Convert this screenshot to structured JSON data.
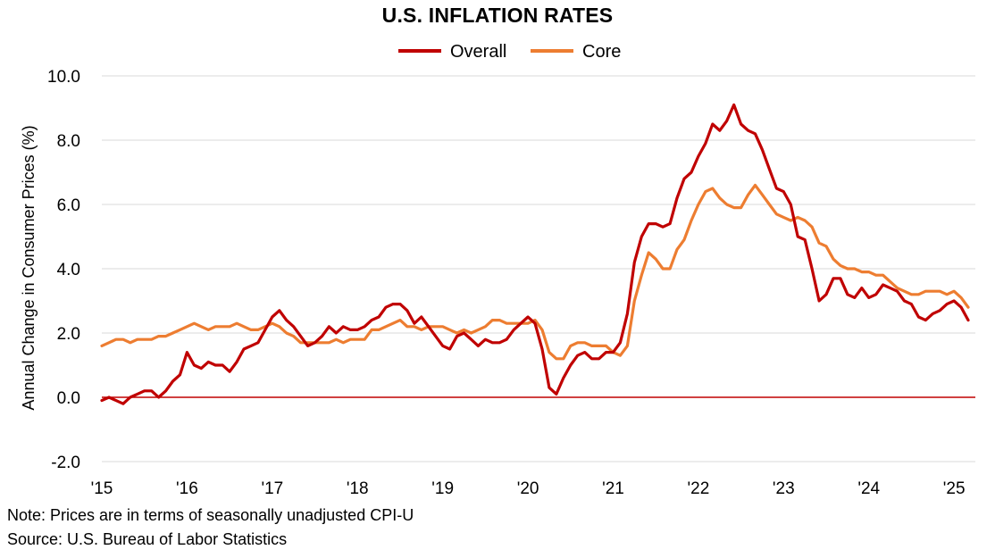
{
  "note": "Note: Prices are in terms of seasonally unadjusted CPI-U",
  "source": "Source: U.S. Bureau of Labor Statistics",
  "colors": {
    "overall": "#C00000",
    "core": "#ED7D31",
    "zero_line": "#C00000",
    "grid": "#D9D9D9"
  },
  "chart_data": {
    "type": "line",
    "title": "U.S. INFLATION RATES",
    "xlabel": "",
    "ylabel": "Annual Change in Consumer Prices (%)",
    "ylim": [
      -2.0,
      10.0
    ],
    "yticks": [
      "-2.0",
      "0.0",
      "2.0",
      "4.0",
      "6.0",
      "8.0",
      "10.0"
    ],
    "ytick_values": [
      -2,
      0,
      2,
      4,
      6,
      8,
      10
    ],
    "xticks": [
      "'15",
      "'16",
      "'17",
      "'18",
      "'19",
      "'20",
      "'21",
      "'22",
      "'23",
      "'24",
      "'25"
    ],
    "xtick_values": [
      2015,
      2016,
      2017,
      2018,
      2019,
      2020,
      2021,
      2022,
      2023,
      2024,
      2025
    ],
    "xlim": [
      2015.0,
      2025.25
    ],
    "grid": true,
    "legend": "top-center",
    "start": 2015.0,
    "step": 0.0833333,
    "series": [
      {
        "name": "Overall",
        "values": [
          -0.1,
          0.0,
          -0.1,
          -0.2,
          0.0,
          0.1,
          0.2,
          0.2,
          0.0,
          0.2,
          0.5,
          0.7,
          1.4,
          1.0,
          0.9,
          1.1,
          1.0,
          1.0,
          0.8,
          1.1,
          1.5,
          1.6,
          1.7,
          2.1,
          2.5,
          2.7,
          2.4,
          2.2,
          1.9,
          1.6,
          1.7,
          1.9,
          2.2,
          2.0,
          2.2,
          2.1,
          2.1,
          2.2,
          2.4,
          2.5,
          2.8,
          2.9,
          2.9,
          2.7,
          2.3,
          2.5,
          2.2,
          1.9,
          1.6,
          1.5,
          1.9,
          2.0,
          1.8,
          1.6,
          1.8,
          1.7,
          1.7,
          1.8,
          2.1,
          2.3,
          2.5,
          2.3,
          1.5,
          0.3,
          0.1,
          0.6,
          1.0,
          1.3,
          1.4,
          1.2,
          1.2,
          1.4,
          1.4,
          1.7,
          2.6,
          4.2,
          5.0,
          5.4,
          5.4,
          5.3,
          5.4,
          6.2,
          6.8,
          7.0,
          7.5,
          7.9,
          8.5,
          8.3,
          8.6,
          9.1,
          8.5,
          8.3,
          8.2,
          7.7,
          7.1,
          6.5,
          6.4,
          6.0,
          5.0,
          4.9,
          4.0,
          3.0,
          3.2,
          3.7,
          3.7,
          3.2,
          3.1,
          3.4,
          3.1,
          3.2,
          3.5,
          3.4,
          3.3,
          3.0,
          2.9,
          2.5,
          2.4,
          2.6,
          2.7,
          2.9,
          3.0,
          2.8,
          2.4
        ]
      },
      {
        "name": "Core",
        "values": [
          1.6,
          1.7,
          1.8,
          1.8,
          1.7,
          1.8,
          1.8,
          1.8,
          1.9,
          1.9,
          2.0,
          2.1,
          2.2,
          2.3,
          2.2,
          2.1,
          2.2,
          2.2,
          2.2,
          2.3,
          2.2,
          2.1,
          2.1,
          2.2,
          2.3,
          2.2,
          2.0,
          1.9,
          1.7,
          1.7,
          1.7,
          1.7,
          1.7,
          1.8,
          1.7,
          1.8,
          1.8,
          1.8,
          2.1,
          2.1,
          2.2,
          2.3,
          2.4,
          2.2,
          2.2,
          2.1,
          2.2,
          2.2,
          2.2,
          2.1,
          2.0,
          2.1,
          2.0,
          2.1,
          2.2,
          2.4,
          2.4,
          2.3,
          2.3,
          2.3,
          2.3,
          2.4,
          2.1,
          1.4,
          1.2,
          1.2,
          1.6,
          1.7,
          1.7,
          1.6,
          1.6,
          1.6,
          1.4,
          1.3,
          1.6,
          3.0,
          3.8,
          4.5,
          4.3,
          4.0,
          4.0,
          4.6,
          4.9,
          5.5,
          6.0,
          6.4,
          6.5,
          6.2,
          6.0,
          5.9,
          5.9,
          6.3,
          6.6,
          6.3,
          6.0,
          5.7,
          5.6,
          5.5,
          5.6,
          5.5,
          5.3,
          4.8,
          4.7,
          4.3,
          4.1,
          4.0,
          4.0,
          3.9,
          3.9,
          3.8,
          3.8,
          3.6,
          3.4,
          3.3,
          3.2,
          3.2,
          3.3,
          3.3,
          3.3,
          3.2,
          3.3,
          3.1,
          2.8
        ]
      }
    ]
  }
}
